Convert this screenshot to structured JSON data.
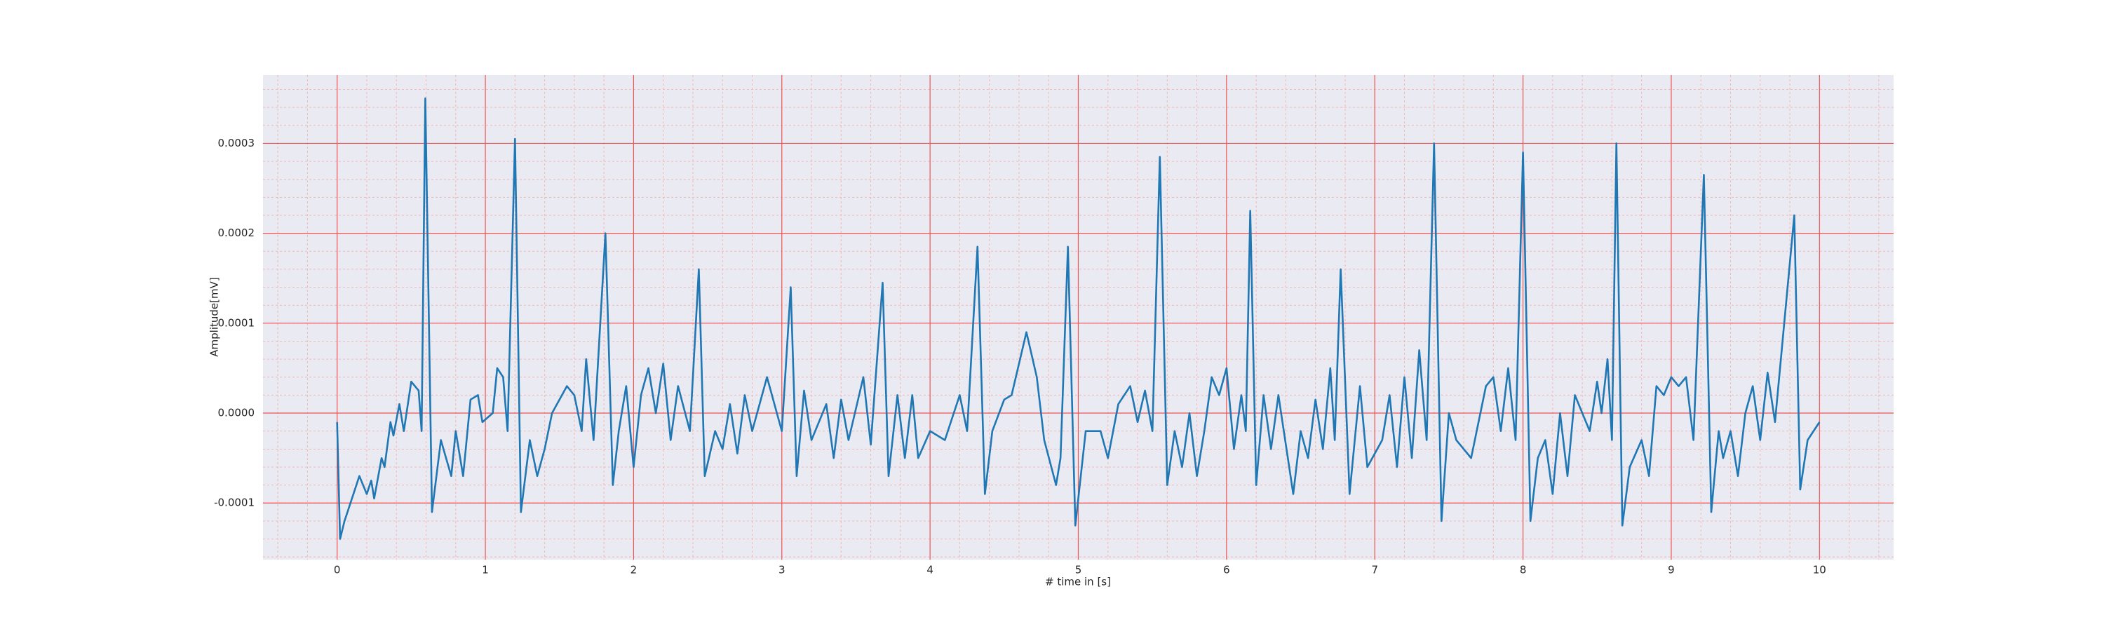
{
  "chart_data": {
    "type": "line",
    "x_label": "# time in [s]",
    "y_label": "Amplitude[mV]",
    "color": "#1f77b4",
    "grid": true,
    "minor_grid": true,
    "xlim": [
      -0.5,
      10.5
    ],
    "ylim": [
      -0.000163,
      0.000376
    ],
    "xticks": [
      0,
      1,
      2,
      3,
      4,
      5,
      6,
      7,
      8,
      9,
      10
    ],
    "yticks": [
      -0.0001,
      {
        "value": 0,
        "label": "0.0000"
      },
      0.0001,
      0.0002,
      0.0003
    ],
    "x": [
      0,
      0.02,
      0.05,
      0.15,
      0.2,
      0.23,
      0.25,
      0.3,
      0.32,
      0.36,
      0.38,
      0.42,
      0.45,
      0.5,
      0.55,
      0.57,
      0.595,
      0.64,
      0.7,
      0.77,
      0.8,
      0.85,
      0.9,
      0.95,
      0.98,
      1.05,
      1.08,
      1.12,
      1.15,
      1.2,
      1.24,
      1.3,
      1.35,
      1.4,
      1.45,
      1.55,
      1.6,
      1.65,
      1.68,
      1.73,
      1.81,
      1.86,
      1.9,
      1.95,
      2.0,
      2.05,
      2.1,
      2.15,
      2.2,
      2.25,
      2.3,
      2.38,
      2.44,
      2.48,
      2.55,
      2.6,
      2.65,
      2.7,
      2.75,
      2.8,
      2.9,
      3.0,
      3.06,
      3.1,
      3.15,
      3.2,
      3.3,
      3.35,
      3.4,
      3.45,
      3.55,
      3.6,
      3.68,
      3.72,
      3.78,
      3.83,
      3.88,
      3.92,
      4.0,
      4.1,
      4.2,
      4.25,
      4.32,
      4.37,
      4.42,
      4.5,
      4.55,
      4.65,
      4.72,
      4.77,
      4.85,
      4.88,
      4.93,
      4.98,
      5.05,
      5.15,
      5.2,
      5.27,
      5.35,
      5.4,
      5.45,
      5.5,
      5.55,
      5.6,
      5.65,
      5.7,
      5.75,
      5.8,
      5.85,
      5.9,
      5.95,
      6.0,
      6.05,
      6.1,
      6.13,
      6.16,
      6.2,
      6.25,
      6.3,
      6.35,
      6.45,
      6.5,
      6.55,
      6.6,
      6.65,
      6.7,
      6.73,
      6.77,
      6.83,
      6.9,
      6.95,
      7.05,
      7.1,
      7.15,
      7.2,
      7.25,
      7.3,
      7.35,
      7.4,
      7.45,
      7.5,
      7.55,
      7.65,
      7.75,
      7.8,
      7.85,
      7.9,
      7.95,
      8.0,
      8.05,
      8.1,
      8.15,
      8.2,
      8.25,
      8.3,
      8.35,
      8.45,
      8.5,
      8.53,
      8.57,
      8.6,
      8.63,
      8.67,
      8.72,
      8.8,
      8.85,
      8.9,
      8.95,
      9.0,
      9.05,
      9.1,
      9.15,
      9.22,
      9.27,
      9.32,
      9.35,
      9.4,
      9.45,
      9.5,
      9.55,
      9.6,
      9.65,
      9.7,
      9.83,
      9.87,
      9.92,
      10.0
    ],
    "values": [
      -1e-05,
      -0.00014,
      -0.00012,
      -7e-05,
      -9e-05,
      -7.5e-05,
      -9.5e-05,
      -5e-05,
      -6e-05,
      -1e-05,
      -2.5e-05,
      1e-05,
      -2e-05,
      3.5e-05,
      2.5e-05,
      -2e-05,
      0.00035,
      -0.00011,
      -3e-05,
      -7e-05,
      -2e-05,
      -7e-05,
      1.5e-05,
      2e-05,
      -1e-05,
      0,
      5e-05,
      4e-05,
      -2e-05,
      0.000305,
      -0.00011,
      -3e-05,
      -7e-05,
      -4e-05,
      0,
      3e-05,
      2e-05,
      -2e-05,
      6e-05,
      -3e-05,
      0.0002,
      -8e-05,
      -2e-05,
      3e-05,
      -6e-05,
      2e-05,
      5e-05,
      0,
      5.5e-05,
      -3e-05,
      3e-05,
      -2e-05,
      0.00016,
      -7e-05,
      -2e-05,
      -4e-05,
      1e-05,
      -4.5e-05,
      2e-05,
      -2e-05,
      4e-05,
      -2e-05,
      0.00014,
      -7e-05,
      2.5e-05,
      -3e-05,
      1e-05,
      -5e-05,
      1.5e-05,
      -3e-05,
      4e-05,
      -3.5e-05,
      0.000145,
      -7e-05,
      2e-05,
      -5e-05,
      2e-05,
      -5e-05,
      -2e-05,
      -3e-05,
      2e-05,
      -2e-05,
      0.000185,
      -9e-05,
      -2e-05,
      1.5e-05,
      2e-05,
      9e-05,
      4e-05,
      -3e-05,
      -8e-05,
      -5e-05,
      0.000185,
      -0.000125,
      -2e-05,
      -2e-05,
      -5e-05,
      1e-05,
      3e-05,
      -1e-05,
      2.5e-05,
      -2e-05,
      0.000285,
      -8e-05,
      -2e-05,
      -6e-05,
      0,
      -7e-05,
      -2e-05,
      4e-05,
      2e-05,
      5e-05,
      -4e-05,
      2e-05,
      -2e-05,
      0.000225,
      -8e-05,
      2e-05,
      -4e-05,
      2e-05,
      -9e-05,
      -2e-05,
      -5e-05,
      1.5e-05,
      -4e-05,
      5e-05,
      -3e-05,
      0.00016,
      -9e-05,
      3e-05,
      -6e-05,
      -3e-05,
      2e-05,
      -6e-05,
      4e-05,
      -5e-05,
      7e-05,
      -3e-05,
      0.0003,
      -0.00012,
      0,
      -3e-05,
      -5e-05,
      3e-05,
      4e-05,
      -2e-05,
      5e-05,
      -3e-05,
      0.00029,
      -0.00012,
      -5e-05,
      -3e-05,
      -9e-05,
      0,
      -7e-05,
      2e-05,
      -2e-05,
      3.5e-05,
      0,
      6e-05,
      -3e-05,
      0.0003,
      -0.000125,
      -6e-05,
      -3e-05,
      -7e-05,
      3e-05,
      2e-05,
      4e-05,
      3e-05,
      4e-05,
      -3e-05,
      0.000265,
      -0.00011,
      -2e-05,
      -5e-05,
      -2e-05,
      -7e-05,
      0,
      3e-05,
      -3e-05,
      4.5e-05,
      -1e-05,
      0.00022,
      -8.5e-05,
      -3e-05,
      -1e-05
    ]
  }
}
